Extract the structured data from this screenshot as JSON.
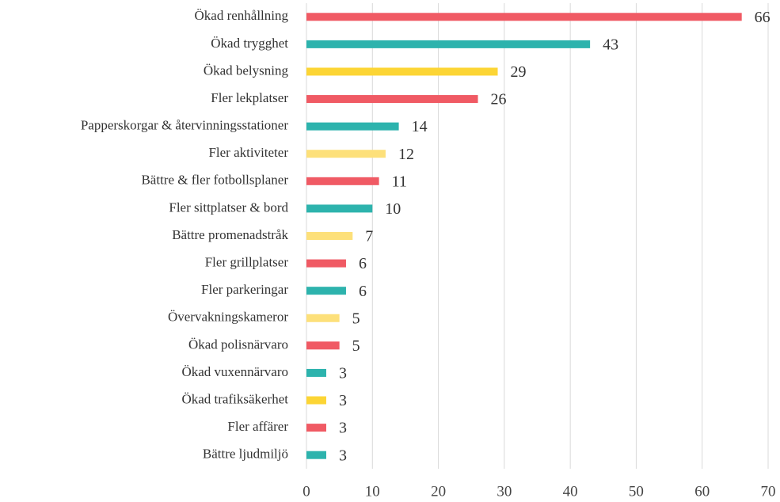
{
  "chart_data": {
    "type": "barh",
    "categories": [
      "Ökad renhållning",
      "Ökad trygghet",
      "Ökad belysning",
      "Fler lekplatser",
      "Papperskorgar & återvinningsstationer",
      "Fler aktiviteter",
      "Bättre & fler fotbollsplaner",
      "Fler sittplatser & bord",
      "Bättre promenadstråk",
      "Fler grillplatser",
      "Fler parkeringar",
      "Övervakningskameror",
      "Ökad polisnärvaro",
      "Ökad vuxennärvaro",
      "Ökad trafiksäkerhet",
      "Fler affärer",
      "Bättre ljudmiljö"
    ],
    "values": [
      66,
      43,
      29,
      26,
      14,
      12,
      11,
      10,
      7,
      6,
      6,
      5,
      5,
      3,
      3,
      3,
      3
    ],
    "colors": [
      "#f05a64",
      "#2db3ad",
      "#fcd535",
      "#f05a64",
      "#2db3ad",
      "#fde07a",
      "#f05a64",
      "#2db3ad",
      "#fde07a",
      "#f05a64",
      "#2db3ad",
      "#fde07a",
      "#f05a64",
      "#2db3ad",
      "#fcd535",
      "#f05a64",
      "#2db3ad"
    ],
    "xlim": [
      0,
      70
    ],
    "xticks": [
      0,
      10,
      20,
      30,
      40,
      50,
      60,
      70
    ],
    "grid": true
  }
}
